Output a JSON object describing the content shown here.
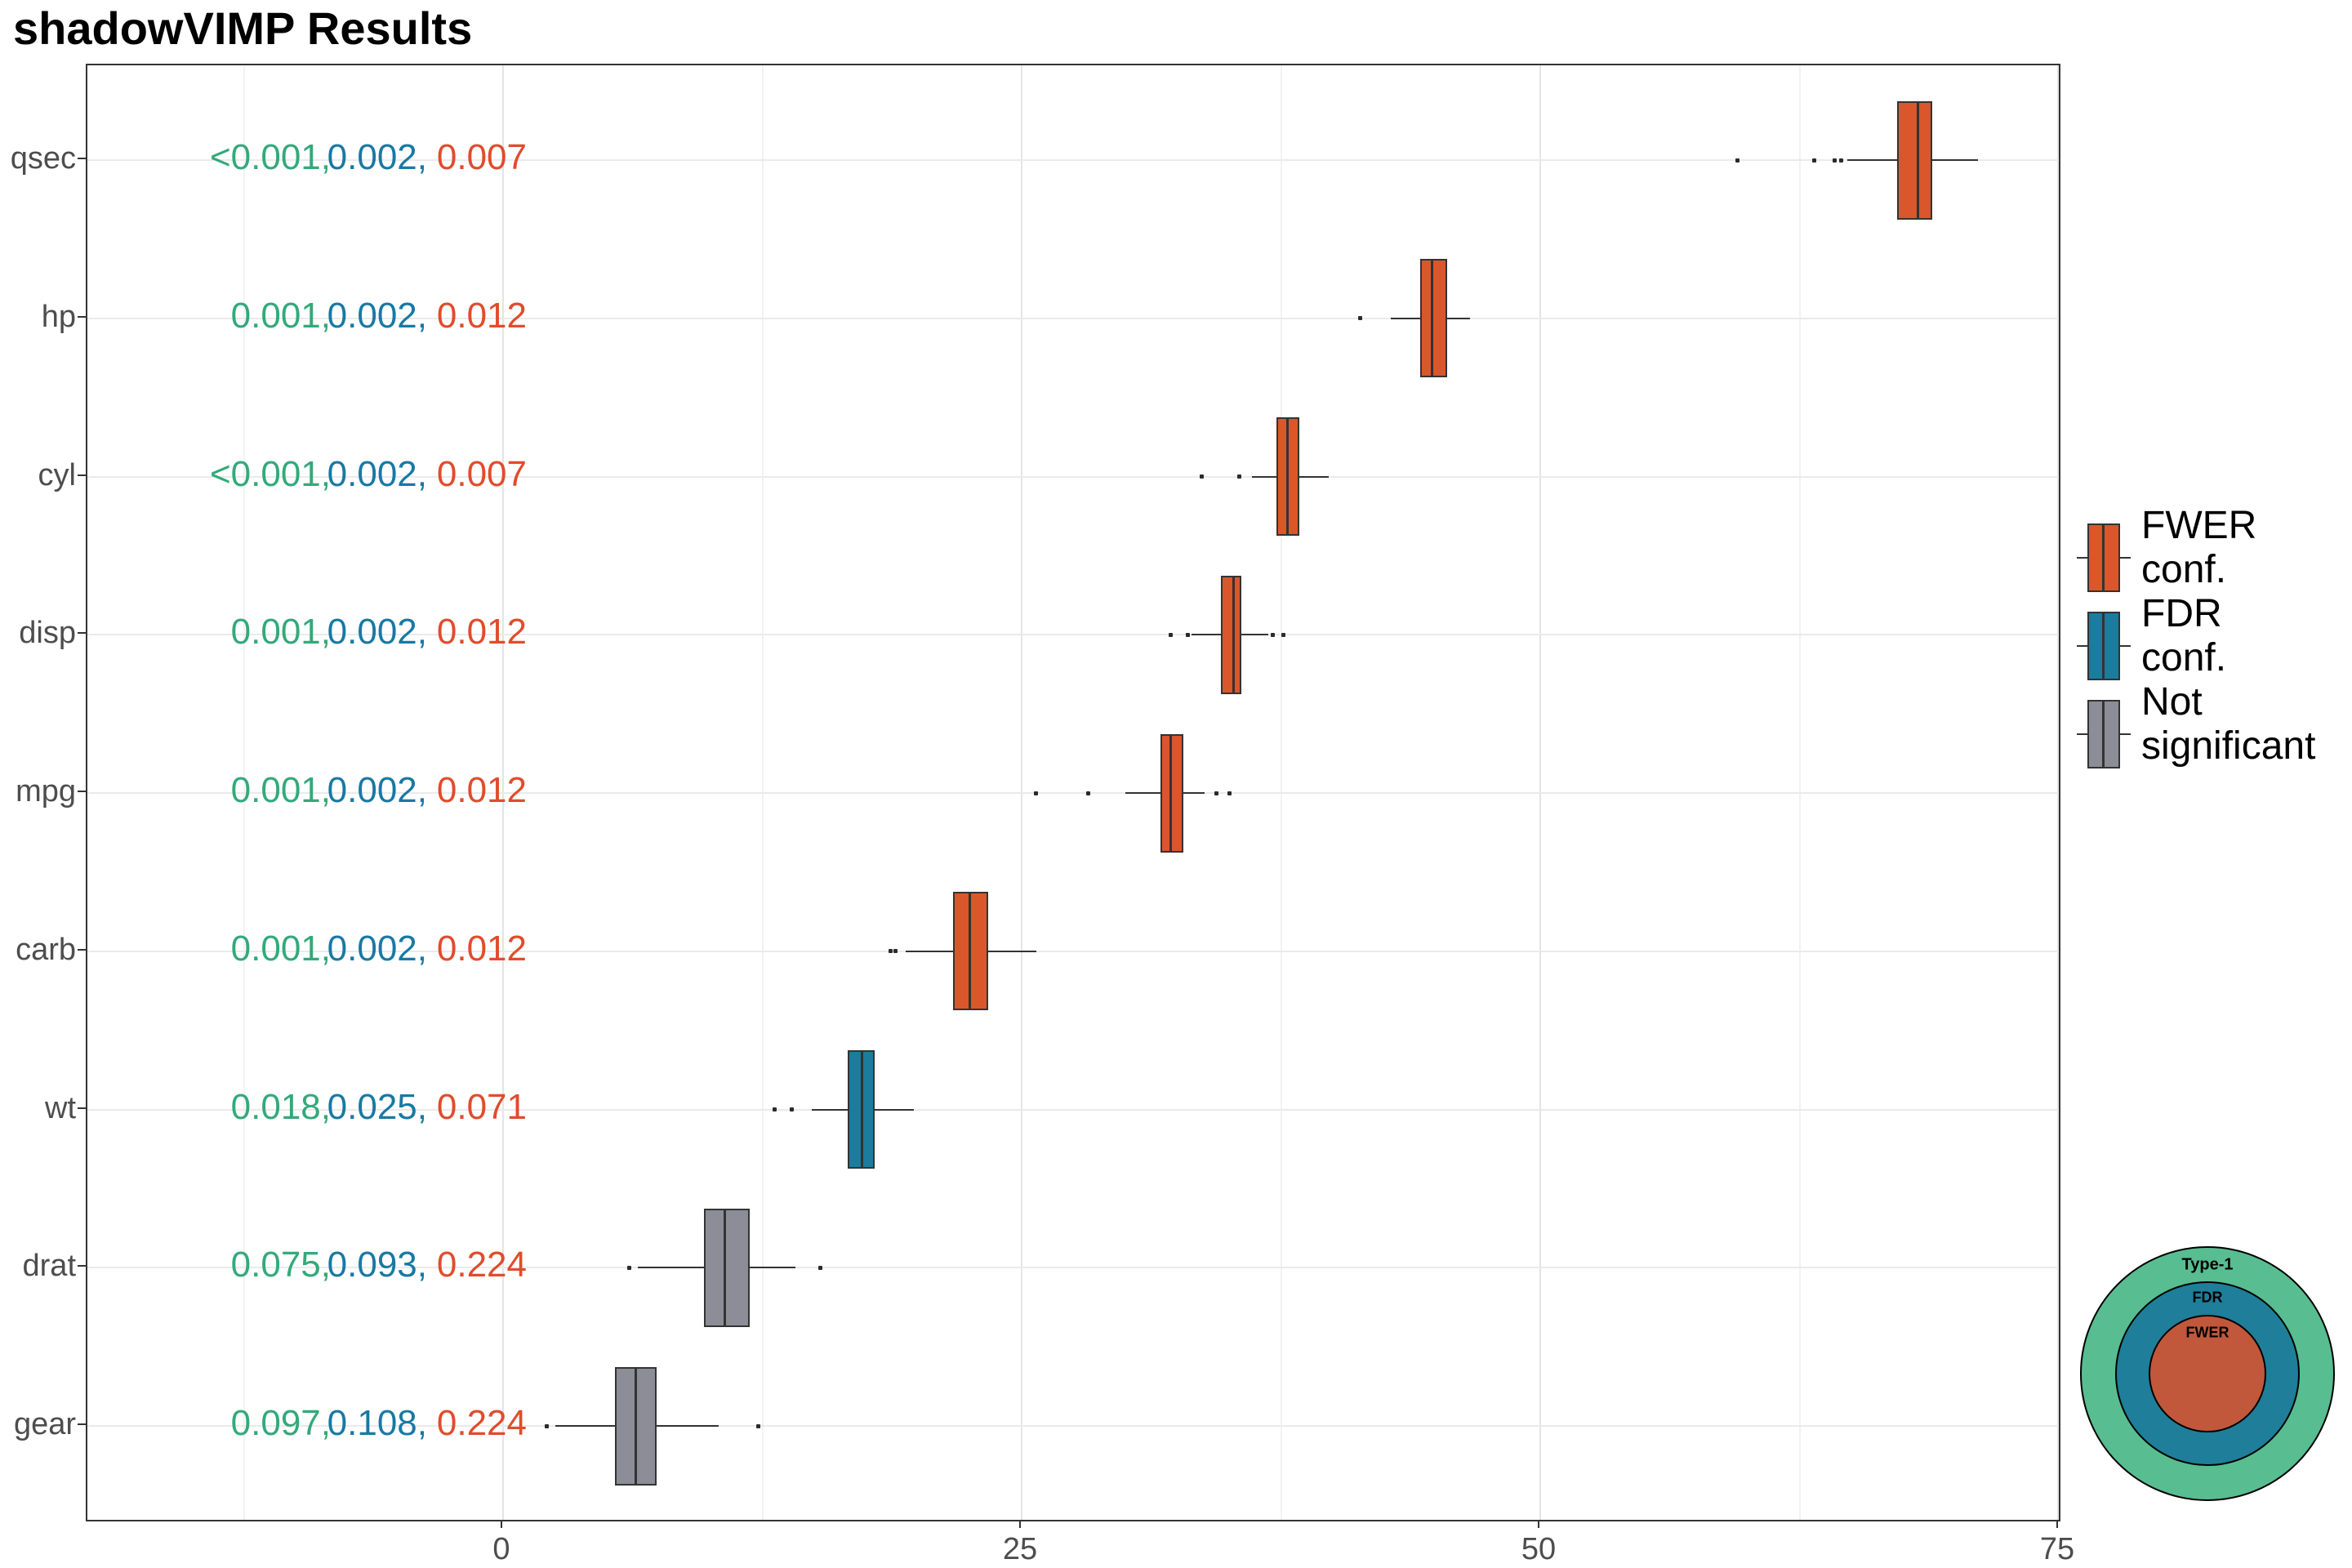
{
  "title": "shadowVIMP Results",
  "colors": {
    "fwer_box": "#D9572B",
    "fdr_box": "#1B7C9D",
    "ns_box": "#8D8D97",
    "box_border": "#333333",
    "p_type1_text": "#34A97A",
    "p_fdr_text": "#1879A4",
    "p_fwer_text": "#E04C2C",
    "axis_text": "#4D4D4D",
    "grid_major": "#E4E4E4",
    "grid_minor": "#F2F2F2",
    "row_grid": "#EAEAEA",
    "circle_type1": "#58BD90",
    "circle_fdr": "#1F7E99",
    "circle_fwer": "#C1583B"
  },
  "legend": {
    "entries": [
      {
        "lines": [
          "FWER",
          "conf."
        ],
        "color_key": "fwer_box"
      },
      {
        "lines": [
          "FDR",
          "conf."
        ],
        "color_key": "fdr_box"
      },
      {
        "lines": [
          "Not",
          "significant"
        ],
        "color_key": "ns_box"
      }
    ]
  },
  "inset": {
    "labels": [
      "Type-1",
      "FDR",
      "FWER"
    ]
  },
  "chart_data": {
    "type": "boxplot",
    "orientation": "horizontal",
    "title": "shadowVIMP Results",
    "xlabel": "",
    "ylabel": "",
    "xlim": [
      -20,
      75
    ],
    "x_ticks": [
      0,
      25,
      50,
      75
    ],
    "x_minor_gridlines": [
      -12.5,
      12.5,
      37.5,
      62.5
    ],
    "grid": true,
    "legend_position": "right",
    "legend_entries": [
      "FWER conf.",
      "FDR conf.",
      "Not significant"
    ],
    "categories": [
      "qsec",
      "hp",
      "cyl",
      "disp",
      "mpg",
      "carb",
      "wt",
      "drat",
      "gear"
    ],
    "rows": [
      {
        "name": "qsec",
        "group": "FWER conf.",
        "p_type1": "<0.001",
        "p_fdr": "0.002",
        "p_fwer": "0.007",
        "whisker_low": 64.8,
        "q1": 67.2,
        "median": 68.2,
        "q3": 68.9,
        "whisker_high": 71.1,
        "outliers": [
          59.5,
          63.2,
          64.2,
          64.5
        ]
      },
      {
        "name": "hp",
        "group": "FWER conf.",
        "p_type1": "0.001",
        "p_fdr": "0.002",
        "p_fwer": "0.012",
        "whisker_low": 42.8,
        "q1": 44.2,
        "median": 44.8,
        "q3": 45.5,
        "whisker_high": 46.6,
        "outliers": [
          41.3
        ]
      },
      {
        "name": "cyl",
        "group": "FWER conf.",
        "p_type1": "<0.001",
        "p_fdr": "0.002",
        "p_fwer": "0.007",
        "whisker_low": 36.1,
        "q1": 37.3,
        "median": 37.8,
        "q3": 38.4,
        "whisker_high": 39.8,
        "outliers": [
          33.7,
          35.5
        ]
      },
      {
        "name": "disp",
        "group": "FWER conf.",
        "p_type1": "0.001",
        "p_fdr": "0.002",
        "p_fwer": "0.012",
        "whisker_low": 33.2,
        "q1": 34.6,
        "median": 35.2,
        "q3": 35.6,
        "whisker_high": 36.9,
        "outliers": [
          32.2,
          33.0,
          37.1,
          37.6
        ]
      },
      {
        "name": "mpg",
        "group": "FWER conf.",
        "p_type1": "0.001",
        "p_fdr": "0.002",
        "p_fwer": "0.012",
        "whisker_low": 30.0,
        "q1": 31.7,
        "median": 32.2,
        "q3": 32.8,
        "whisker_high": 33.8,
        "outliers": [
          25.7,
          28.2,
          34.4,
          35.0
        ]
      },
      {
        "name": "carb",
        "group": "FWER conf.",
        "p_type1": "0.001",
        "p_fdr": "0.002",
        "p_fwer": "0.012",
        "whisker_low": 19.4,
        "q1": 21.7,
        "median": 22.5,
        "q3": 23.4,
        "whisker_high": 25.7,
        "outliers": [
          18.7,
          18.9
        ]
      },
      {
        "name": "wt",
        "group": "FDR conf.",
        "p_type1": "0.018",
        "p_fdr": "0.025",
        "p_fwer": "0.071",
        "whisker_low": 14.9,
        "q1": 16.6,
        "median": 17.3,
        "q3": 17.9,
        "whisker_high": 19.8,
        "outliers": [
          13.1,
          13.9
        ]
      },
      {
        "name": "drat",
        "group": "Not significant",
        "p_type1": "0.075",
        "p_fdr": "0.093",
        "p_fwer": "0.224",
        "whisker_low": 6.5,
        "q1": 9.7,
        "median": 10.7,
        "q3": 11.9,
        "whisker_high": 14.1,
        "outliers": [
          6.1,
          15.3
        ]
      },
      {
        "name": "gear",
        "group": "Not significant",
        "p_type1": "0.097",
        "p_fdr": "0.108",
        "p_fwer": "0.224",
        "whisker_low": 2.5,
        "q1": 5.4,
        "median": 6.4,
        "q3": 7.4,
        "whisker_high": 10.4,
        "outliers": [
          2.1,
          12.3
        ]
      }
    ]
  }
}
